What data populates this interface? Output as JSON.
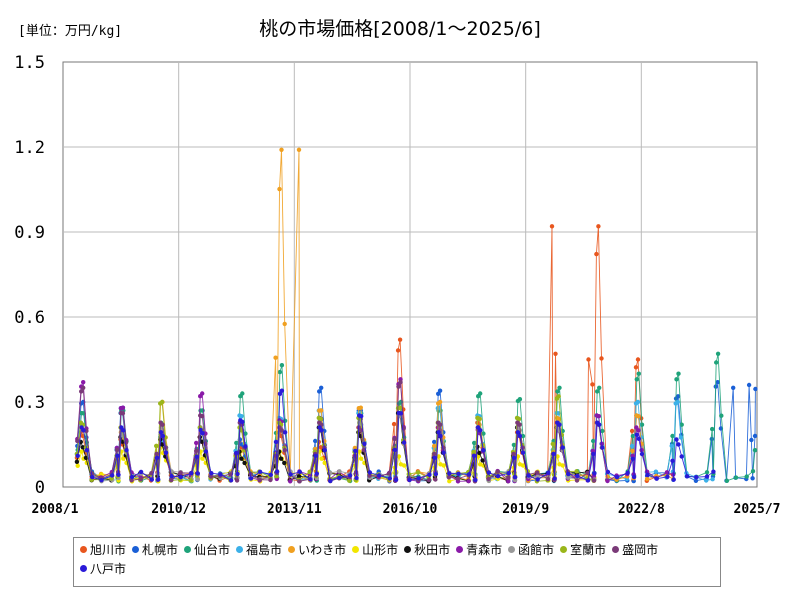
{
  "chart_data": {
    "type": "line",
    "title": "桃の市場価格[2008/1～2025/6]",
    "unit_label": "[単位：万円/kg]",
    "xlabel": "",
    "ylabel": "",
    "ylim": [
      0,
      1.5
    ],
    "yticks": [
      "0",
      "0.3",
      "0.6",
      "0.9",
      "1.2",
      "1.5"
    ],
    "xlim": [
      2008.0,
      2025.5
    ],
    "xticks": [
      {
        "label": "2008/1",
        "value": 2008.0
      },
      {
        "label": "2010/12",
        "value": 2010.917
      },
      {
        "label": "2013/11",
        "value": 2013.833
      },
      {
        "label": "2016/10",
        "value": 2016.75
      },
      {
        "label": "2019/9",
        "value": 2019.667
      },
      {
        "label": "2022/8",
        "value": 2022.583
      },
      {
        "label": "2025/7",
        "value": 2025.5
      }
    ],
    "grid": true,
    "legend_position": "bottom",
    "series": [
      {
        "name": "旭川市",
        "color": "#e8561e",
        "peaks": [
          0.18,
          0.15,
          0.16,
          0.16,
          0.14,
          0.18,
          0.14,
          0.2,
          0.52,
          0.2,
          0.22,
          0.18,
          0.22,
          0.92,
          0.45
        ],
        "spikes": [
          [
            2020.33,
            0.92
          ],
          [
            2020.42,
            0.47
          ],
          [
            2021.25,
            0.45
          ]
        ]
      },
      {
        "name": "札幌市",
        "color": "#1a5fd6",
        "peaks": [
          0.3,
          0.28,
          0.17,
          0.2,
          0.15,
          0.2,
          0.35,
          0.27,
          0.25,
          0.34,
          0.2,
          0.2,
          0.2,
          0.22,
          0.25,
          0.32,
          0.37,
          0.36
        ],
        "spikes": [
          [
            2024.9,
            0.35
          ],
          [
            2025.3,
            0.36
          ],
          [
            2025.45,
            0.18
          ]
        ]
      },
      {
        "name": "仙台市",
        "color": "#1fa37a",
        "peaks": [
          0.26,
          0.27,
          0.22,
          0.27,
          0.33,
          0.43,
          0.24,
          0.26,
          0.3,
          0.27,
          0.33,
          0.31,
          0.35,
          0.35,
          0.4,
          0.4,
          0.47
        ],
        "spikes": [
          [
            2025.45,
            0.13
          ]
        ]
      },
      {
        "name": "福島市",
        "color": "#3cb0e8",
        "peaks": [
          0.22,
          0.26,
          0.16,
          0.2,
          0.25,
          0.24,
          0.27,
          0.26,
          0.28,
          0.28,
          0.25,
          0.24,
          0.26,
          0.25,
          0.3,
          0.3
        ],
        "spikes": []
      },
      {
        "name": "いわき市",
        "color": "#f0a020",
        "peaks": [
          0.2,
          0.18,
          0.3,
          0.2,
          0.2,
          1.19,
          0.27,
          0.28,
          0.25,
          0.3,
          0.24,
          0.22,
          0.24,
          0.22,
          0.25
        ],
        "spikes": [
          [
            2013.95,
            1.19
          ]
        ]
      },
      {
        "name": "山形市",
        "color": "#f2e600",
        "peaks": [
          0.1,
          0.1,
          0.12,
          0.1,
          0.1,
          0.1,
          0.1,
          0.1,
          0.08,
          0.08,
          0.08,
          0.08,
          0.08
        ],
        "spikes": []
      },
      {
        "name": "秋田市",
        "color": "#111111",
        "peaks": [
          0.14,
          0.16,
          0.15,
          0.16,
          0.1,
          0.1,
          0.2,
          0.18,
          0.26,
          0.18,
          0.12,
          0.2,
          0.2
        ],
        "spikes": []
      },
      {
        "name": "青森市",
        "color": "#8a1aa8",
        "peaks": [
          0.37,
          0.28,
          0.18,
          0.33,
          0.22,
          0.23,
          0.24,
          0.24,
          0.38,
          0.2,
          0.19,
          0.22,
          0.2,
          0.25,
          0.2
        ],
        "spikes": []
      },
      {
        "name": "函館市",
        "color": "#999999",
        "peaks": [
          0.2,
          0.18,
          0.2,
          0.2,
          0.2,
          0.2,
          0.22,
          0.22,
          0.25,
          0.22,
          0.2,
          0.2,
          0.2
        ],
        "spikes": []
      },
      {
        "name": "室蘭市",
        "color": "#9ab61a",
        "peaks": [
          0.22,
          0.2,
          0.3,
          0.2,
          0.2,
          0.22,
          0.24,
          0.24,
          0.28,
          0.22,
          0.24,
          0.24,
          0.32
        ],
        "spikes": []
      },
      {
        "name": "盛岡市",
        "color": "#7a3a78",
        "peaks": [
          0.35,
          0.26,
          0.22,
          0.25,
          0.22,
          0.2,
          0.22,
          0.2,
          0.37,
          0.22,
          0.2,
          0.22,
          0.22
        ],
        "spikes": []
      },
      {
        "name": "八戸市",
        "color": "#2a1ad8",
        "peaks": [
          0.2,
          0.2,
          0.18,
          0.19,
          0.23,
          0.34,
          0.2,
          0.25,
          0.26,
          0.18,
          0.2,
          0.18,
          0.22,
          0.22,
          0.17,
          0.15
        ],
        "spikes": []
      }
    ]
  }
}
